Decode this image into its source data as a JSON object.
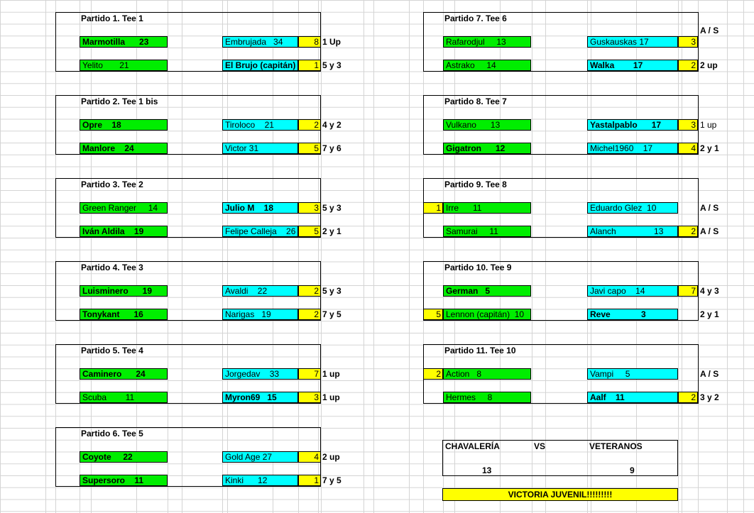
{
  "matches": [
    {
      "title": "Partido 1. Tee 1",
      "rows": [
        {
          "left": "Marmotilla      23",
          "left_bold": true,
          "right": "Embrujada   34",
          "right_bold": false,
          "score": "8",
          "result": "1 Up",
          "result_bold": true
        },
        {
          "left": "Yelito       21",
          "left_bold": false,
          "right": "El Brujo (capitán)",
          "right_bold": true,
          "score": "1",
          "result": "5 y 3",
          "result_bold": true
        }
      ]
    },
    {
      "title": "Partido 2. Tee 1 bis",
      "rows": [
        {
          "left": "Opre    18",
          "left_bold": true,
          "right": "Tiroloco    21",
          "right_bold": false,
          "score": "2",
          "result": "4 y 2",
          "result_bold": true
        },
        {
          "left": "Manlore    24",
          "left_bold": true,
          "right": "Victor 31",
          "right_bold": false,
          "score": "5",
          "result": "7 y 6",
          "result_bold": true
        }
      ]
    },
    {
      "title": "Partido 3. Tee 2",
      "rows": [
        {
          "left": "Green Ranger     14",
          "left_bold": false,
          "right": "Julio M    18",
          "right_bold": true,
          "score": "3",
          "result": "5 y 3",
          "result_bold": true
        },
        {
          "left": "Iván Aldila    19",
          "left_bold": true,
          "right": "Felipe Calleja    26",
          "right_bold": false,
          "score": "5",
          "result": "2 y 1",
          "result_bold": true
        }
      ]
    },
    {
      "title": "Partido 4. Tee 3",
      "rows": [
        {
          "left": "Luisminero      19",
          "left_bold": true,
          "right": "Avaldi    22",
          "right_bold": false,
          "score": "2",
          "result": "5 y 3",
          "result_bold": true
        },
        {
          "left": "Tonykant      16",
          "left_bold": true,
          "right": "Narigas   19",
          "right_bold": false,
          "score": "2",
          "result": "7 y 5",
          "result_bold": true
        }
      ]
    },
    {
      "title": "Partido 5. Tee 4",
      "rows": [
        {
          "left": "Caminero      24",
          "left_bold": true,
          "right": "Jorgedav    33",
          "right_bold": false,
          "score": "7",
          "result": "1 up",
          "result_bold": true
        },
        {
          "left": "Scuba        11",
          "left_bold": false,
          "right": "Myron69   15",
          "right_bold": true,
          "score": "3",
          "result": "1 up",
          "result_bold": true
        }
      ]
    },
    {
      "title": "Partido 6. Tee 5",
      "rows": [
        {
          "left": "Coyote     22",
          "left_bold": true,
          "right": "Gold Age 27",
          "right_bold": false,
          "score": "4",
          "result": "2 up",
          "result_bold": true
        },
        {
          "left": "Supersoro    11",
          "left_bold": true,
          "right": "Kinki      12",
          "right_bold": false,
          "score": "1",
          "result": "7 y 5",
          "result_bold": true
        }
      ]
    },
    {
      "title": "Partido 7. Tee 6",
      "header_result": "A / S",
      "rows": [
        {
          "left": "Rafarodjul     13",
          "left_bold": false,
          "right": "Guskauskas 17",
          "right_bold": false,
          "score": "3",
          "result": "",
          "result_bold": false
        },
        {
          "left": "Astrako     14",
          "left_bold": false,
          "right": "Walka        17",
          "right_bold": true,
          "score": "2",
          "result": "2 up",
          "result_bold": true
        }
      ]
    },
    {
      "title": "Partido 8. Tee 7",
      "rows": [
        {
          "left": "Vulkano      13",
          "left_bold": false,
          "right": "Yastalpablo      17",
          "right_bold": true,
          "score": "3",
          "result": "1 up",
          "result_bold": false
        },
        {
          "left": "Gigatron      12",
          "left_bold": true,
          "right": "Michel1960    17",
          "right_bold": false,
          "score": "4",
          "result": "2 y 1",
          "result_bold": true
        }
      ]
    },
    {
      "title": "Partido 9. Tee 8",
      "rows": [
        {
          "pre": "1",
          "left": "Irre      11",
          "left_bold": false,
          "right": "Eduardo Glez  10",
          "right_bold": false,
          "score": "",
          "result": "A / S",
          "result_bold": true
        },
        {
          "left": "Samurai     11",
          "left_bold": false,
          "right": "Alanch                13",
          "right_bold": false,
          "score": "2",
          "result": "A / S",
          "result_bold": true
        }
      ]
    },
    {
      "title": "Partido 10. Tee 9",
      "rows": [
        {
          "left": "German   5",
          "left_bold": true,
          "right": "Javi capo    14",
          "right_bold": false,
          "score": "7",
          "result": "4 y 3",
          "result_bold": true
        },
        {
          "pre": "5",
          "left": "Lennon (capitán)  10",
          "left_bold": false,
          "right": "Reve             3",
          "right_bold": true,
          "score": "",
          "result": "2 y 1",
          "result_bold": true
        }
      ]
    },
    {
      "title": "Partido 11. Tee 10",
      "rows": [
        {
          "pre": "2",
          "left": "Action   8",
          "left_bold": false,
          "right": "Vampi     5",
          "right_bold": false,
          "score": "",
          "result": "A / S",
          "result_bold": true
        },
        {
          "left": "Hermes     8",
          "left_bold": false,
          "right": "Aalf    11",
          "right_bold": true,
          "score": "2",
          "result": "3 y 2",
          "result_bold": true
        }
      ]
    }
  ],
  "summary": {
    "team_a": "CHAVALERÍA",
    "vs": "VS",
    "team_b": "VETERANOS",
    "score_a": "13",
    "score_b": "9",
    "banner": "VICTORIA JUVENIL!!!!!!!!!",
    "colors": {
      "green": "#00ee00",
      "cyan": "#00ffff",
      "yellow": "#ffff00"
    }
  }
}
